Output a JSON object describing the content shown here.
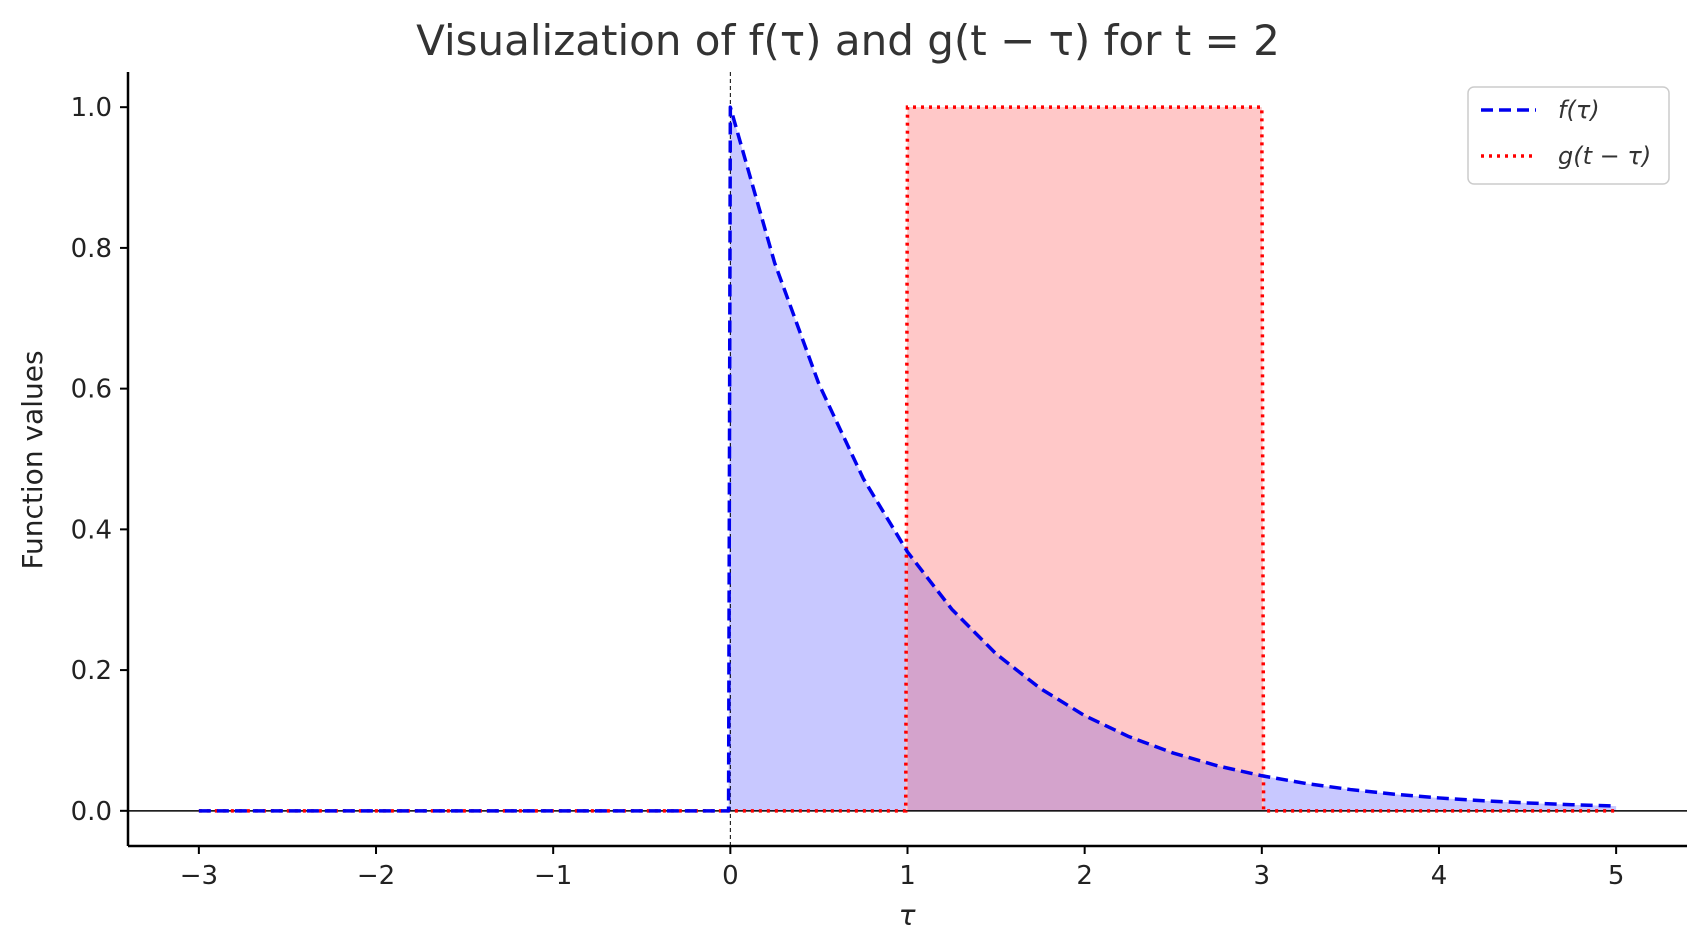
{
  "chart_data": {
    "type": "line",
    "title": "Visualization of f(τ) and g(t − τ) for t = 2",
    "xlabel": "τ",
    "ylabel": "Function values",
    "xlim": [
      -3.4,
      5.4
    ],
    "ylim": [
      -0.05,
      1.05
    ],
    "xticks": [
      -3,
      -2,
      -1,
      0,
      1,
      2,
      3,
      4,
      5
    ],
    "xtick_labels": [
      "−3",
      "−2",
      "−1",
      "0",
      "1",
      "2",
      "3",
      "4",
      "5"
    ],
    "yticks": [
      0.0,
      0.2,
      0.4,
      0.6,
      0.8,
      1.0
    ],
    "ytick_labels": [
      "0.0",
      "0.2",
      "0.4",
      "0.6",
      "0.8",
      "1.0"
    ],
    "grid": false,
    "legend_position": "top-right",
    "reference_lines": [
      {
        "orientation": "horizontal",
        "value": 0
      },
      {
        "orientation": "vertical",
        "value": 0,
        "style": "dashed"
      }
    ],
    "series": [
      {
        "name": "f(τ)",
        "style": "dashed",
        "color": "#0000ee",
        "fill_color": "#c8c8ff",
        "x": [
          -3,
          -2,
          -1,
          -0.01,
          0,
          0.25,
          0.5,
          0.75,
          1,
          1.25,
          1.5,
          1.75,
          2,
          2.25,
          2.5,
          2.75,
          3,
          3.25,
          3.5,
          3.75,
          4,
          4.25,
          4.5,
          4.75,
          5
        ],
        "y": [
          0,
          0,
          0,
          0,
          1,
          0.7788,
          0.6065,
          0.4724,
          0.3679,
          0.2865,
          0.2231,
          0.1738,
          0.1353,
          0.1054,
          0.0821,
          0.0639,
          0.0498,
          0.0388,
          0.0302,
          0.0235,
          0.0183,
          0.0143,
          0.0111,
          0.0087,
          0.0067
        ]
      },
      {
        "name": "g(t − τ)",
        "style": "dotted",
        "color": "#ff0000",
        "fill_color": "#ffc8c8",
        "x": [
          -3,
          0.99,
          1,
          3,
          3.01,
          5
        ],
        "y": [
          0,
          0,
          1,
          1,
          0,
          0
        ]
      }
    ],
    "overlap_fill_color": "#d4a3cc"
  }
}
